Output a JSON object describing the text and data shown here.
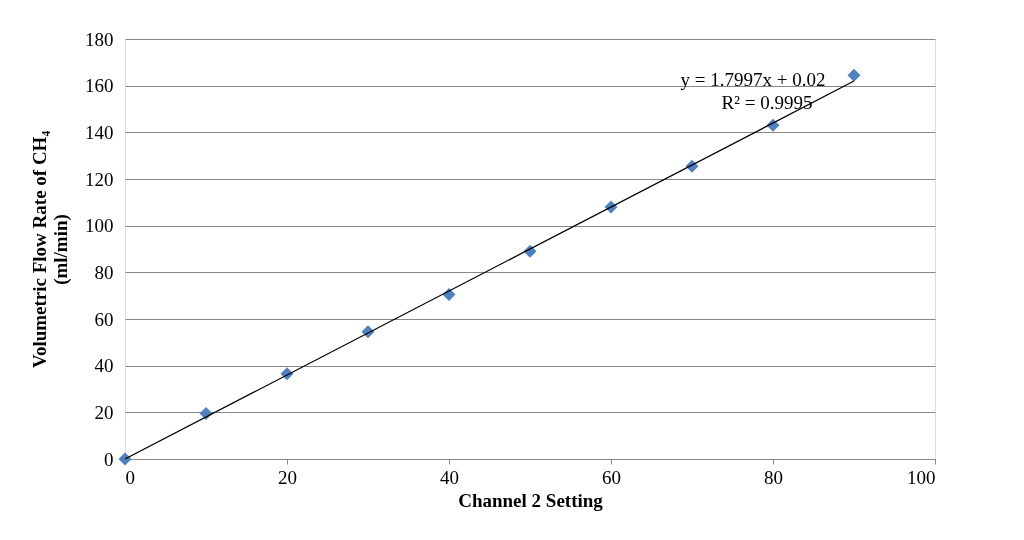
{
  "chart_data": {
    "type": "scatter",
    "xlabel": "Channel 2 Setting",
    "ylabel": "Volumetric Flow Rate of CH₄\n(ml/min)",
    "x": [
      0,
      10,
      20,
      30,
      40,
      50,
      60,
      70,
      80,
      90
    ],
    "series": [
      {
        "color": "#4f81bd",
        "values": [
          0,
          19.5,
          36.5,
          54.5,
          70.5,
          89,
          108,
          125.5,
          143,
          164.5
        ]
      },
      {
        "type": "line",
        "marker": "none",
        "color": "#000000",
        "x": [
          0,
          90
        ],
        "values": [
          0,
          162
        ]
      }
    ],
    "xlim": [
      0,
      100
    ],
    "xticks": [
      0,
      20,
      40,
      60,
      80,
      100
    ],
    "ylim": [
      0,
      180
    ],
    "yticks": [
      0,
      20,
      40,
      60,
      80,
      100,
      120,
      140,
      160,
      180
    ],
    "grid": "y",
    "marker": "diamond",
    "annotations": [
      "y = 1.7997x + 0.02",
      "R² = 0.9995"
    ]
  }
}
